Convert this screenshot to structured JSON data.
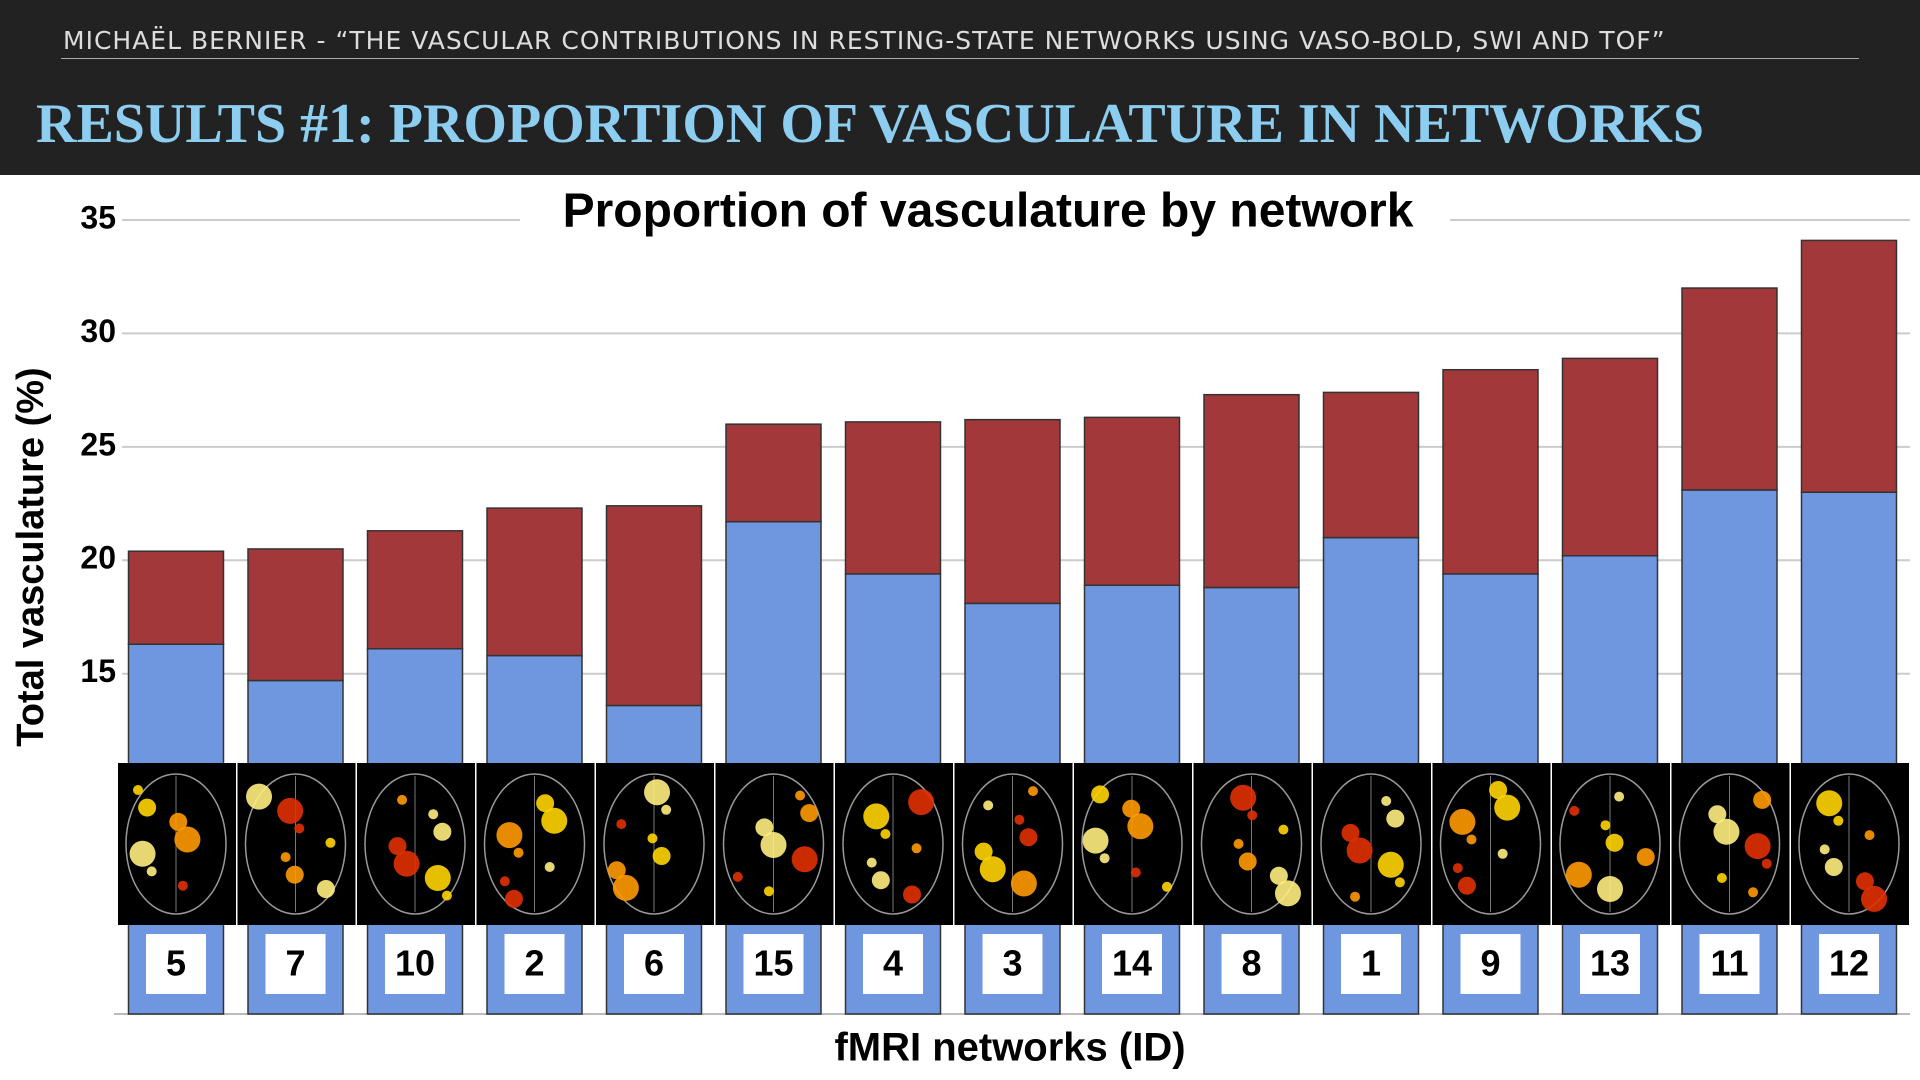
{
  "header": {
    "author_line": "MICHAËL BERNIER  -  “THE VASCULAR CONTRIBUTIONS IN RESTING-STATE NETWORKS USING VASO-BOLD, SWI AND TOF”",
    "title": "RESULTS #1: PROPORTION OF VASCULATURE IN NETWORKS"
  },
  "chart_data": {
    "type": "bar",
    "stacked": true,
    "title": "Proportion of vasculature by network",
    "x_label": "fMRI networks (ID)",
    "y_label": "Total vasculature (%)",
    "categories": [
      "5",
      "7",
      "10",
      "2",
      "6",
      "15",
      "4",
      "3",
      "14",
      "8",
      "1",
      "9",
      "13",
      "11",
      "12"
    ],
    "series": [
      {
        "color": "#6f97e0",
        "values": [
          16.3,
          14.7,
          16.1,
          15.8,
          13.6,
          21.7,
          19.4,
          18.1,
          18.9,
          18.8,
          21.0,
          19.4,
          20.2,
          23.1,
          23.0
        ]
      },
      {
        "color": "#a3383a",
        "values": [
          4.1,
          5.8,
          5.2,
          6.5,
          8.8,
          4.3,
          6.7,
          8.1,
          7.4,
          8.5,
          6.4,
          9.0,
          8.7,
          8.9,
          11.1
        ]
      }
    ],
    "ylim": [
      0,
      35
    ],
    "yticks": [
      15,
      20,
      25,
      30,
      35
    ],
    "grid": true
  }
}
